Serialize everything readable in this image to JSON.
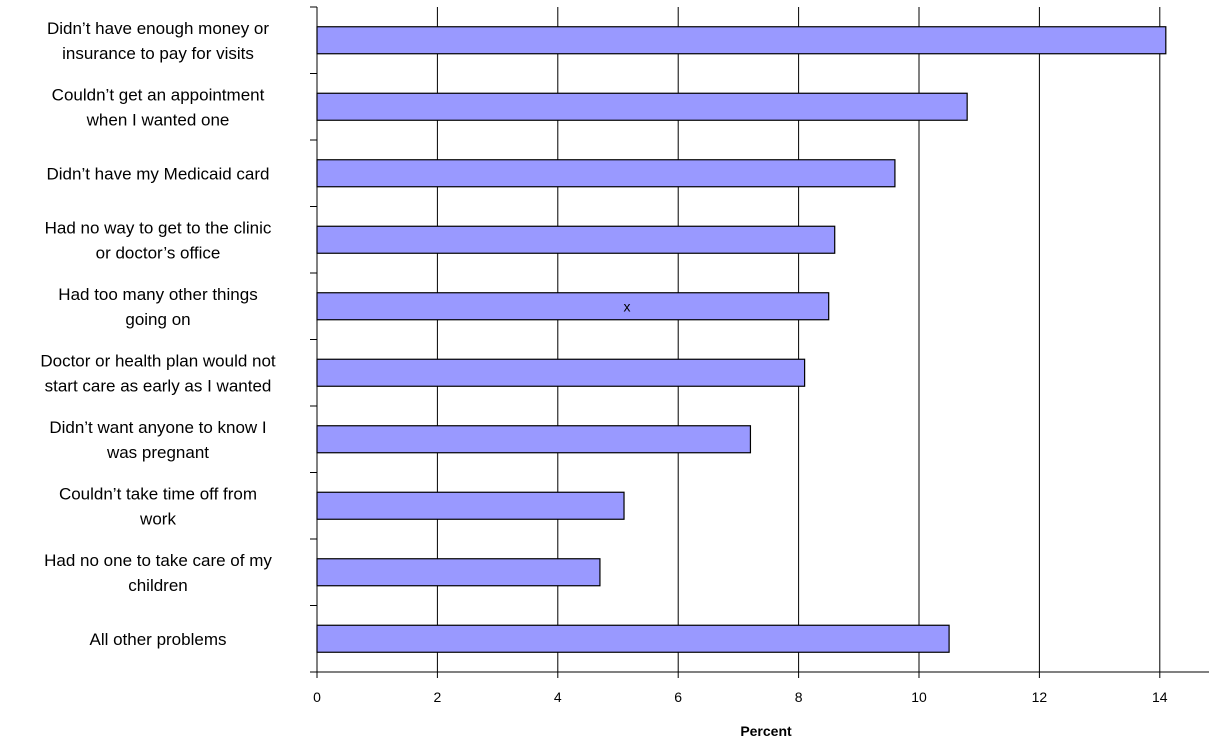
{
  "chart_data": {
    "type": "bar",
    "orientation": "horizontal",
    "title": "",
    "xlabel": "Percent",
    "ylabel": "",
    "xlim": [
      0,
      14.5
    ],
    "xticks": [
      0,
      2,
      4,
      6,
      8,
      10,
      12,
      14
    ],
    "tick_labels": [
      "0",
      "2",
      "4",
      "6",
      "8",
      "10",
      "12",
      "14"
    ],
    "grid": "vertical",
    "legend": "none",
    "bar_color": "#9999FF",
    "bar_border": "#000000",
    "categories": [
      [
        "Didn’t have enough money or",
        "insurance to pay for visits"
      ],
      [
        "Couldn’t get an appointment",
        "when I wanted one"
      ],
      [
        "Didn’t have my Medicaid card"
      ],
      [
        "Had no way to get to the clinic",
        "or doctor’s office"
      ],
      [
        "Had too many other things",
        "going on"
      ],
      [
        "Doctor or health plan would not",
        "start care as early as I wanted"
      ],
      [
        "Didn’t want anyone to know I",
        "was pregnant"
      ],
      [
        "Couldn’t take time off from",
        "work"
      ],
      [
        "Had no one to take care of my",
        "children"
      ],
      [
        "All other problems"
      ]
    ],
    "values": [
      14.1,
      10.8,
      9.6,
      8.6,
      8.5,
      8.1,
      7.2,
      5.1,
      4.7,
      10.5
    ],
    "annotations": [
      {
        "text": "x",
        "category_index": 4,
        "x_value": 5.15
      }
    ]
  }
}
